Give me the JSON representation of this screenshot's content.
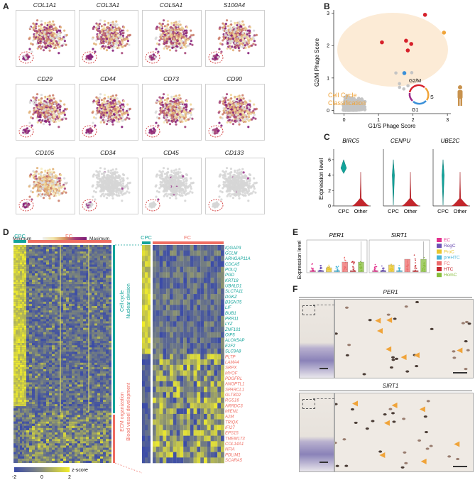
{
  "panels": {
    "a": "A",
    "b": "B",
    "c": "C",
    "d": "D",
    "e": "E",
    "f": "F"
  },
  "tsne": {
    "genes": [
      "COL1A1",
      "COL3A1",
      "COL5A1",
      "S100A4",
      "CD29",
      "CD44",
      "CD73",
      "CD90",
      "CD105",
      "CD34",
      "CD45",
      "CD133"
    ],
    "legend_min": "Minimum",
    "legend_max": "Maximum",
    "colors": {
      "low": "#f5e9b8",
      "mid": "#d8a06a",
      "high": "#8c1f78",
      "gray": "#d4d4d4"
    }
  },
  "scatter": {
    "xlabel": "G1/S Phage Score",
    "ylabel": "G2/M Phage Score",
    "xticks": [
      "0",
      "1",
      "2",
      "3"
    ],
    "yticks": [
      "0",
      "1",
      "2",
      "3"
    ],
    "annotation": "Cell Cycle\nClassification",
    "phases": [
      "G2/M",
      "S",
      "G1"
    ],
    "xlim": [
      -0.3,
      3.1
    ],
    "ylim": [
      -0.1,
      3.1
    ],
    "highlight_points": [
      {
        "x": 2.35,
        "y": 2.95,
        "color": "#d6202a"
      },
      {
        "x": 2.9,
        "y": 2.4,
        "color": "#f0a43a"
      },
      {
        "x": 1.1,
        "y": 2.1,
        "color": "#d6202a"
      },
      {
        "x": 1.8,
        "y": 2.15,
        "color": "#d6202a"
      },
      {
        "x": 1.95,
        "y": 2.05,
        "color": "#d6202a"
      },
      {
        "x": 1.85,
        "y": 1.85,
        "color": "#d6202a"
      },
      {
        "x": 1.75,
        "y": 1.15,
        "color": "#3b90d8"
      }
    ]
  },
  "violins": {
    "ylabel": "Expression level",
    "yticks": [
      "0",
      "2",
      "4",
      "6"
    ],
    "genes": [
      "BIRC5",
      "CENPU",
      "UBE2C"
    ],
    "groups": [
      "CPC",
      "Other"
    ]
  },
  "heatmap": {
    "col_groups": [
      "CPC",
      "FC"
    ],
    "cluster_labels": [
      "Cell cycle\nNuclear division",
      "ECM organization\nBlood vessel development"
    ],
    "legend_title": "z-score",
    "legend_ticks": [
      "-2",
      "0",
      "2"
    ],
    "genes_cycle": [
      "IQGAP3",
      "GCLM",
      "ARHGAP11A",
      "CDCA5",
      "POLQ",
      "PGD",
      "KRT18",
      "UBALD1",
      "SLC7A11",
      "DGKZ",
      "B3GNT5",
      "LIF",
      "BUB1",
      "PRR11",
      "LYZ",
      "ZNF101",
      "OIP5",
      "ALOX5AP",
      "E2F2",
      "SLC9A8"
    ],
    "genes_ecm": [
      "PLTP",
      "LAMA4",
      "SRPX",
      "MYOF",
      "PDGFRL",
      "ANGPTL1",
      "SPARCL1",
      "GLT8D2",
      "RGS16",
      "ARRDC3",
      "MIEN1",
      "A2M",
      "TRIQK",
      "IFI27",
      "EPS15",
      "TMEM173",
      "COL14A1",
      "NFIA",
      "PDLIM1",
      "SCARA5"
    ],
    "colors": {
      "cycle": "#12a39a",
      "ecm": "#ef6d62",
      "low": "#3b4ba8",
      "high": "#f3ef2a"
    }
  },
  "boxplots": {
    "ylabel": "Expression level",
    "genes": [
      "PER1",
      "SIRT1"
    ],
    "legend": [
      {
        "label": "EC",
        "color": "#e3318d"
      },
      {
        "label": "RegC",
        "color": "#6c4fb4"
      },
      {
        "label": "ProC",
        "color": "#e9c62d"
      },
      {
        "label": "preHTC",
        "color": "#46b5d8"
      },
      {
        "label": "FC",
        "color": "#ee6b6b"
      },
      {
        "label": "HTC",
        "color": "#c4262c"
      },
      {
        "label": "HomC",
        "color": "#86bd3a"
      }
    ]
  },
  "ihc": {
    "titles": [
      "PER1",
      "SIRT1"
    ]
  }
}
